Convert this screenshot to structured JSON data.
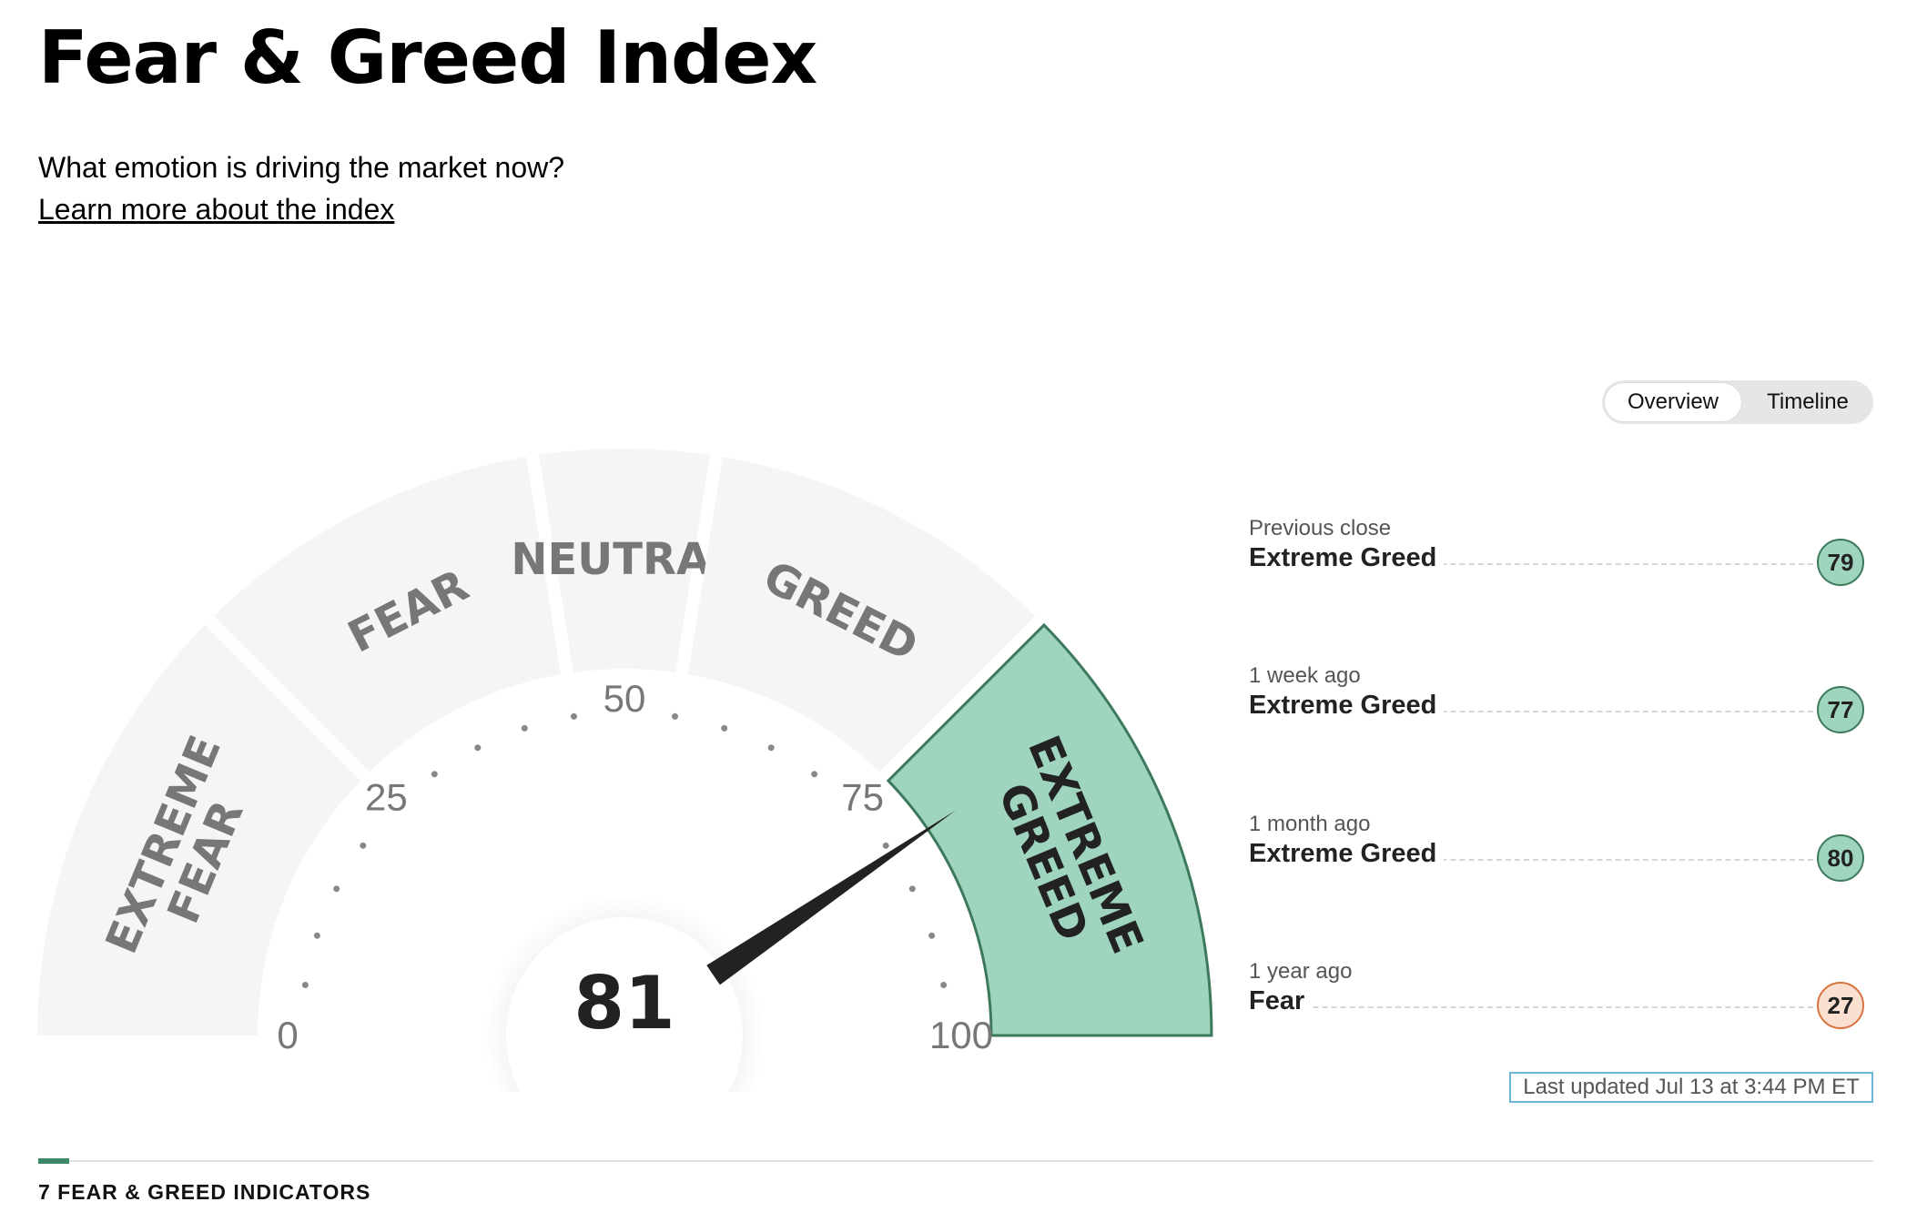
{
  "page": {
    "title": "Fear & Greed Index",
    "subtitle": "What emotion is driving the market now?",
    "learn_link": "Learn more about the index"
  },
  "gauge": {
    "value": 81,
    "value_label": "81",
    "min": 0,
    "max": 100,
    "tick_labels": [
      "0",
      "25",
      "50",
      "75",
      "100"
    ],
    "segments": [
      {
        "lines": [
          "EXTREME",
          "FEAR"
        ],
        "from": 0,
        "to": 25
      },
      {
        "lines": [
          "FEAR"
        ],
        "from": 25,
        "to": 45
      },
      {
        "lines": [
          "NEUTRAL"
        ],
        "from": 45,
        "to": 55
      },
      {
        "lines": [
          "GREED"
        ],
        "from": 55,
        "to": 75
      },
      {
        "lines": [
          "EXTREME",
          "GREED"
        ],
        "from": 75,
        "to": 100
      }
    ],
    "active_segment": 4,
    "colors": {
      "segment_fill": "#f5f5f5",
      "active_fill": "#9fd4bf",
      "active_stroke": "#3d7a5c",
      "segment_text": "#777777",
      "active_text": "#222222",
      "needle": "#222222",
      "tick_label": "#777777"
    }
  },
  "toggle": {
    "options": [
      "Overview",
      "Timeline"
    ],
    "active": "Overview"
  },
  "history": [
    {
      "label": "Previous close",
      "rating": "Extreme Greed",
      "value": "79",
      "tone": "greed"
    },
    {
      "label": "1 week ago",
      "rating": "Extreme Greed",
      "value": "77",
      "tone": "greed"
    },
    {
      "label": "1 month ago",
      "rating": "Extreme Greed",
      "value": "80",
      "tone": "greed"
    },
    {
      "label": "1 year ago",
      "rating": "Fear",
      "value": "27",
      "tone": "fear"
    }
  ],
  "last_updated": "Last updated Jul 13 at 3:44 PM ET",
  "indicators_heading": "7 FEAR & GREED INDICATORS"
}
